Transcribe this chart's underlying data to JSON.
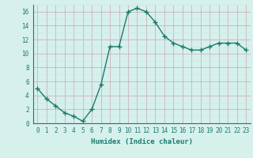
{
  "x": [
    0,
    1,
    2,
    3,
    4,
    5,
    6,
    7,
    8,
    9,
    10,
    11,
    12,
    13,
    14,
    15,
    16,
    17,
    18,
    19,
    20,
    21,
    22,
    23
  ],
  "y": [
    5.0,
    3.5,
    2.5,
    1.5,
    1.0,
    0.3,
    2.0,
    5.5,
    11.0,
    11.0,
    16.0,
    16.5,
    16.0,
    14.5,
    12.5,
    11.5,
    11.0,
    10.5,
    10.5,
    11.0,
    11.5,
    11.5,
    11.5,
    10.5
  ],
  "line_color": "#1a7a6e",
  "marker": "+",
  "marker_size": 4,
  "bg_color": "#d6f0ec",
  "xlabel": "Humidex (Indice chaleur)",
  "xlim": [
    -0.5,
    23.5
  ],
  "ylim": [
    0,
    17
  ],
  "yticks": [
    0,
    2,
    4,
    6,
    8,
    10,
    12,
    14,
    16
  ],
  "xtick_labels": [
    "0",
    "1",
    "2",
    "3",
    "4",
    "5",
    "6",
    "7",
    "8",
    "9",
    "10",
    "11",
    "12",
    "13",
    "14",
    "15",
    "16",
    "17",
    "18",
    "19",
    "20",
    "21",
    "22",
    "23"
  ],
  "xlabel_fontsize": 6.5,
  "tick_fontsize": 5.5,
  "line_width": 1.0,
  "major_grid_color": "#c8a8b0",
  "minor_grid_color": "#c8e8e4"
}
